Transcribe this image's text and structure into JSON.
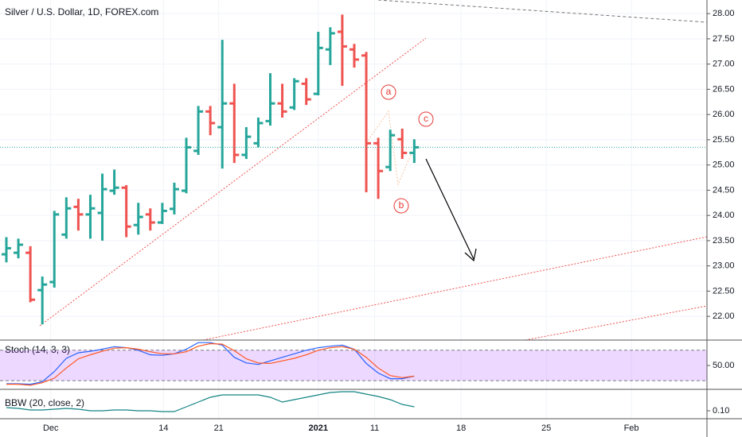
{
  "chart_data": [
    {
      "type": "ohlc",
      "title": "Silver / U.S. Dollar, 1D, FOREX.com",
      "open": [
        23.23,
        23.26,
        23.26,
        22.52,
        22.68,
        23.62,
        24.17,
        24.02,
        24.05,
        24.49,
        24.55,
        23.81,
        24.02,
        23.86,
        24.13,
        24.49,
        25.28,
        26.06,
        25.75,
        26.22,
        25.2,
        25.43,
        25.87,
        26.22,
        26.14,
        26.61,
        26.41,
        27.29,
        27.64,
        27.29,
        27.17,
        25.43,
        24.96,
        25.51,
        25.24
      ],
      "high": [
        23.57,
        23.54,
        23.39,
        22.79,
        24.09,
        24.36,
        24.33,
        24.41,
        24.83,
        24.91,
        24.6,
        24.25,
        24.14,
        24.25,
        24.65,
        25.54,
        26.17,
        26.17,
        27.48,
        26.61,
        25.75,
        25.94,
        26.82,
        26.61,
        26.72,
        26.72,
        27.64,
        27.73,
        27.98,
        27.4,
        27.24,
        25.54,
        25.7,
        25.72,
        25.51
      ],
      "low": [
        23.07,
        23.15,
        22.28,
        21.84,
        22.57,
        23.54,
        23.7,
        23.54,
        23.5,
        24.41,
        23.57,
        23.62,
        23.7,
        23.83,
        24.02,
        24.44,
        25.2,
        25.59,
        24.93,
        25.04,
        25.12,
        25.35,
        25.78,
        25.94,
        26.09,
        26.19,
        26.38,
        26.98,
        26.57,
        26.93,
        24.46,
        24.33,
        24.88,
        25.12,
        25.04
      ],
      "close": [
        23.35,
        23.42,
        22.33,
        22.63,
        24.02,
        24.14,
        24.02,
        24.14,
        24.52,
        24.55,
        23.78,
        23.97,
        23.86,
        24.09,
        24.52,
        25.35,
        26.06,
        25.83,
        26.22,
        25.2,
        25.56,
        25.83,
        26.22,
        26.06,
        26.66,
        26.3,
        27.32,
        27.61,
        27.35,
        27.09,
        25.43,
        24.88,
        25.59,
        25.24,
        25.35
      ],
      "up_color": "#26a69a",
      "down_color": "#ef5350",
      "last_price_line": true,
      "xlim": [
        -0.53,
        58.4
      ],
      "xticks": [
        {
          "value": 3.7,
          "label": "Dec"
        },
        {
          "value": 13.1,
          "label": "14"
        },
        {
          "value": 17.7,
          "label": "21"
        },
        {
          "value": 26.0,
          "label": "2021"
        },
        {
          "value": 30.7,
          "label": "11"
        },
        {
          "value": 37.9,
          "label": "18"
        },
        {
          "value": 45.0,
          "label": "25"
        },
        {
          "value": 52.1,
          "label": "Feb"
        }
      ],
      "ylim": [
        21.53,
        28.27
      ],
      "yticks": [
        {
          "value": 22,
          "label": "22.00"
        },
        {
          "value": 22.5,
          "label": "22.50"
        },
        {
          "value": 23,
          "label": "23.00"
        },
        {
          "value": 23.5,
          "label": "23.50"
        },
        {
          "value": 24,
          "label": "24.00"
        },
        {
          "value": 24.5,
          "label": "24.50"
        },
        {
          "value": 25,
          "label": "25.00"
        },
        {
          "value": 25.5,
          "label": "25.50"
        },
        {
          "value": 26,
          "label": "26.00"
        },
        {
          "value": 26.5,
          "label": "26.50"
        },
        {
          "value": 27,
          "label": "27.00"
        },
        {
          "value": 27.5,
          "label": "27.50"
        },
        {
          "value": 28,
          "label": "28.00"
        }
      ],
      "grid": true,
      "annotations": [
        "a",
        "b",
        "c"
      ]
    },
    {
      "type": "line",
      "title": "Stoch (14, 3, 3)",
      "series": [
        {
          "color": "#2962ff",
          "values": [
            14,
            14,
            13,
            18,
            38,
            64,
            75,
            78,
            82,
            87,
            85,
            80,
            71,
            70,
            73,
            82,
            95,
            95,
            90,
            66,
            55,
            52,
            59,
            66,
            73,
            80,
            85,
            88,
            90,
            82,
            54,
            35,
            24,
            24,
            29
          ]
        },
        {
          "color": "#ff5722",
          "values": [
            13,
            13,
            11,
            16,
            25,
            45,
            63,
            71,
            78,
            84,
            85,
            82,
            77,
            73,
            73,
            77,
            88,
            93,
            92,
            79,
            63,
            55,
            54,
            59,
            64,
            71,
            80,
            85,
            87,
            82,
            66,
            45,
            30,
            26,
            29
          ]
        }
      ],
      "ylim": [
        3,
        100
      ],
      "yticks": [
        {
          "value": 50,
          "label": "50.00"
        }
      ],
      "levels": [
        20,
        80
      ],
      "band_color": "#9c27ff"
    },
    {
      "type": "line",
      "title": "BBW (20, close, 2)",
      "series": [
        {
          "color": "#138484",
          "values": [
            0.116,
            0.112,
            0.104,
            0.104,
            0.108,
            0.112,
            0.108,
            0.1,
            0.1,
            0.104,
            0.104,
            0.1,
            0.1,
            0.096,
            0.096,
            0.12,
            0.144,
            0.168,
            0.18,
            0.18,
            0.18,
            0.18,
            0.168,
            0.144,
            0.156,
            0.168,
            0.18,
            0.192,
            0.196,
            0.196,
            0.184,
            0.172,
            0.156,
            0.132,
            0.12
          ]
        }
      ],
      "ylim": [
        0.06,
        0.208
      ],
      "yticks": [
        {
          "value": 0.1,
          "label": "0.10"
        }
      ]
    }
  ]
}
